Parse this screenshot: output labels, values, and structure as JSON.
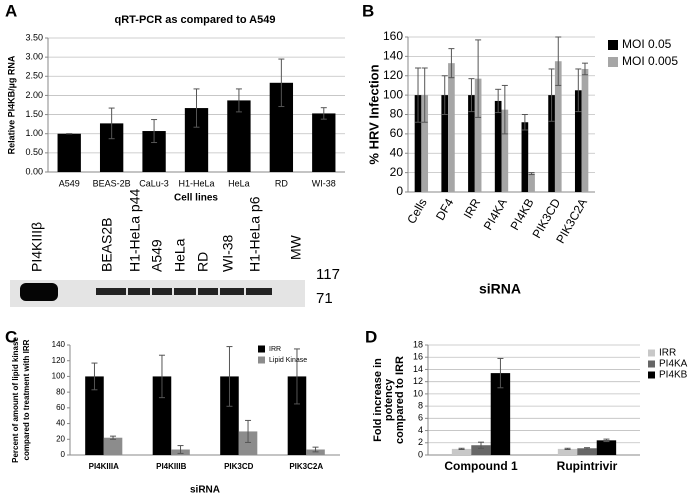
{
  "chart_data": [
    {
      "type": "bar",
      "panel": "A",
      "title": "qRT-PCR as compared to A549",
      "ylabel": "Relative PI4KB/µg RNA",
      "xlabel": "Cell lines",
      "categories": [
        "A549",
        "BEAS-2B",
        "CaLu-3",
        "H1-HeLa",
        "HeLa",
        "RD",
        "WI-38"
      ],
      "series": [
        {
          "name": null,
          "color": "#000000",
          "values": [
            1.0,
            1.27,
            1.07,
            1.67,
            1.87,
            2.33,
            1.53
          ],
          "errors": [
            0,
            0.4,
            0.3,
            0.5,
            0.3,
            0.62,
            0.15
          ]
        }
      ],
      "ylim": [
        0,
        3.5
      ],
      "yticks": [
        {
          "value": 0,
          "label": "0.00"
        },
        {
          "value": 0.5,
          "label": "0.50"
        },
        {
          "value": 1,
          "label": "1.00"
        },
        {
          "value": 1.5,
          "label": "1.50"
        },
        {
          "value": 2,
          "label": "2.00"
        },
        {
          "value": 2.5,
          "label": "2.50"
        },
        {
          "value": 3,
          "label": "3.00"
        },
        {
          "value": 3.5,
          "label": "3.50"
        }
      ],
      "grid": true
    },
    {
      "type": "bar",
      "panel": "B",
      "ylabel": "% HRV Infection",
      "xlabel": "siRNA",
      "categories": [
        "Cells",
        "DF4",
        "IRR",
        "PI4KA",
        "PI4KB",
        "PIK3CD",
        "PIK3C2A"
      ],
      "series": [
        {
          "name": "MOI 0.05",
          "color": "#000000",
          "values": [
            100,
            100,
            100,
            94,
            72,
            100,
            105
          ],
          "errors": [
            28,
            20,
            17,
            12,
            8,
            27,
            22
          ]
        },
        {
          "name": "MOI 0.005",
          "color": "#a6a6a6",
          "values": [
            100,
            133,
            117,
            85,
            19,
            135,
            127
          ],
          "errors": [
            28,
            15,
            40,
            25,
            1,
            25,
            6
          ]
        }
      ],
      "ylim": [
        0,
        160
      ],
      "yticks": [
        0,
        20,
        40,
        60,
        80,
        100,
        120,
        140,
        160
      ],
      "grid": true,
      "legend": "right"
    },
    {
      "type": "bar",
      "panel": "C",
      "ylabel": [
        "Percent of amount of lipid kinase",
        "compared to treatment with IRR"
      ],
      "xlabel": "siRNA",
      "categories": [
        "PI4KIIIA",
        "PI4KIIIB",
        "PIK3CD",
        "PIK3C2A"
      ],
      "series": [
        {
          "name": "IRR",
          "color": "#000000",
          "values": [
            100,
            100,
            100,
            100
          ],
          "errors": [
            17,
            27,
            38,
            35
          ]
        },
        {
          "name": "Lipid Kinase",
          "color": "#8c8c8c",
          "values": [
            22,
            7,
            30,
            7
          ],
          "errors": [
            2,
            5,
            14,
            3
          ]
        }
      ],
      "ylim": [
        0,
        140
      ],
      "yticks": [
        0,
        20,
        40,
        60,
        80,
        100,
        120,
        140
      ],
      "grid": false,
      "legend": "upper right"
    },
    {
      "type": "bar",
      "panel": "D",
      "ylabel": [
        "Fold increase in",
        "potency",
        "compared to IRR"
      ],
      "categories": [
        "Compound 1",
        "Rupintrivir"
      ],
      "series": [
        {
          "name": "IRR",
          "color": "#c8c8c8",
          "values": [
            1.0,
            1.0
          ],
          "errors": [
            0.1,
            0.1
          ]
        },
        {
          "name": "PI4KA",
          "color": "#666666",
          "values": [
            1.6,
            1.1
          ],
          "errors": [
            0.5,
            0.1
          ]
        },
        {
          "name": "PI4KB",
          "color": "#000000",
          "values": [
            13.4,
            2.4
          ],
          "errors": [
            2.4,
            0.2
          ]
        }
      ],
      "ylim": [
        0,
        18
      ],
      "yticks": [
        0,
        2,
        4,
        6,
        8,
        10,
        12,
        14,
        16,
        18
      ],
      "grid": true,
      "legend": "right"
    }
  ],
  "blot": {
    "lanes": [
      "PI4KIIIβ",
      "BEAS2B",
      "H1-HeLa p44",
      "A549",
      "HeLa",
      "RD",
      "WI-38",
      "H1-HeLa p6"
    ],
    "mw_label": "MW",
    "markers": [
      117,
      71
    ]
  }
}
